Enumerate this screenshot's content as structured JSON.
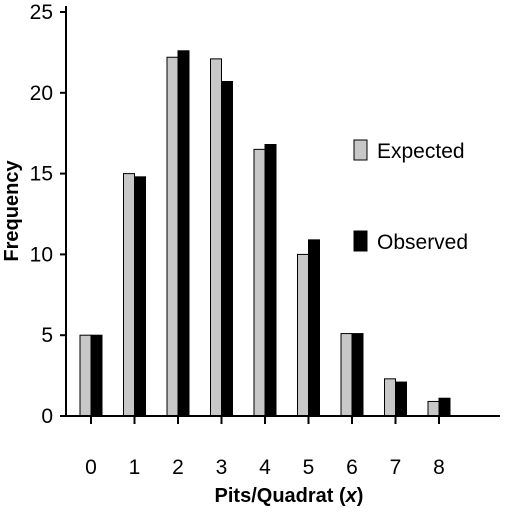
{
  "chart_data": {
    "type": "bar",
    "title": "",
    "xlabel": "Pits/Quadrat (x)",
    "xlabel_main": "Pits/Quadrat (",
    "xlabel_var": "x",
    "xlabel_close": ")",
    "ylabel": "Frequency",
    "categories": [
      "0",
      "1",
      "2",
      "3",
      "4",
      "5",
      "6",
      "7",
      "8"
    ],
    "ylim": [
      0,
      25
    ],
    "yticks": [
      "0",
      "5",
      "10",
      "15",
      "20",
      "25"
    ],
    "series": [
      {
        "name": "Expected",
        "color": "#c8c8c8",
        "values": [
          5.0,
          15.0,
          22.2,
          22.1,
          16.5,
          10.0,
          5.1,
          2.3,
          0.9
        ]
      },
      {
        "name": "Observed",
        "color": "#000000",
        "values": [
          5.0,
          14.8,
          22.6,
          20.7,
          16.8,
          10.9,
          5.1,
          2.1,
          1.1
        ]
      }
    ],
    "legend_position": "right",
    "grid": false
  }
}
